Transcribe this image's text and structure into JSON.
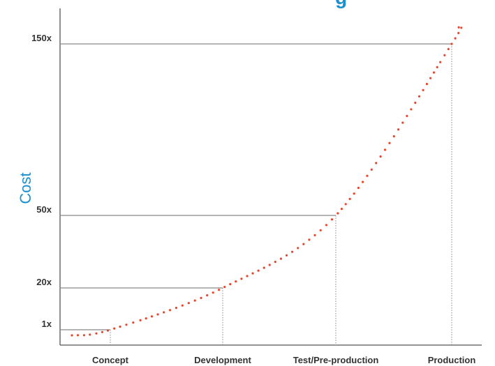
{
  "chart_data": {
    "type": "line",
    "title": "g",
    "ylabel": "Cost",
    "xlabel": "",
    "categories": [
      "Concept",
      "Development",
      "Test/Pre-production",
      "Production"
    ],
    "values": [
      1,
      20,
      50,
      150
    ],
    "y_ticks": [
      {
        "label": "1x",
        "value": 1
      },
      {
        "label": "20x",
        "value": 20
      },
      {
        "label": "50x",
        "value": 50
      },
      {
        "label": "150x",
        "value": 150
      }
    ],
    "ylim": [
      0,
      150
    ],
    "grid": false,
    "colors": {
      "curve": "#e8452c",
      "accent": "#1a8fd0",
      "axis": "#555555",
      "reference_line": "#888888"
    }
  }
}
